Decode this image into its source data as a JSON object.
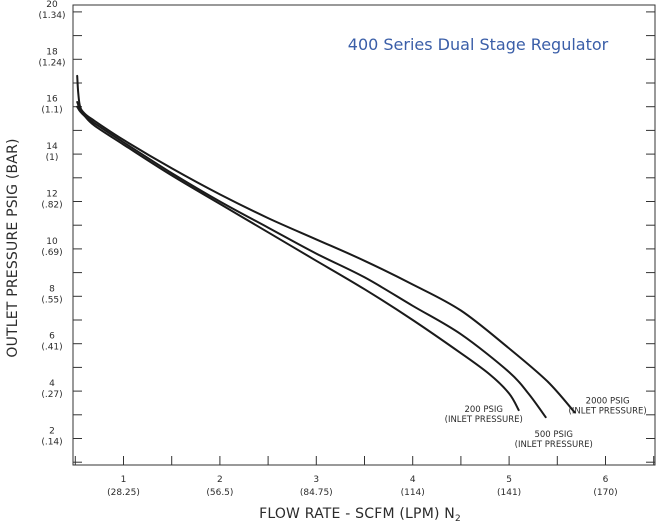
{
  "chart_data": {
    "type": "line",
    "title": "400 Series Dual Stage Regulator",
    "xlabel": "FLOW RATE - SCFM (LPM) N",
    "xlabel_subscript": "2",
    "ylabel": "OUTLET PRESSURE PSIG (BAR)",
    "xlim": [
      0.5,
      6.5
    ],
    "ylim": [
      0.5,
      20.5
    ],
    "x_ticks": [
      {
        "value": 1,
        "label": "1",
        "sublabel": "(28.25)"
      },
      {
        "value": 2,
        "label": "2",
        "sublabel": "(56.5)"
      },
      {
        "value": 3,
        "label": "3",
        "sublabel": "(84.75)"
      },
      {
        "value": 4,
        "label": "4",
        "sublabel": "(114)"
      },
      {
        "value": 5,
        "label": "5",
        "sublabel": "(141)"
      },
      {
        "value": 6,
        "label": "6",
        "sublabel": "(170)"
      }
    ],
    "y_ticks": [
      {
        "value": 2,
        "label": "2",
        "sublabel": "(.14)"
      },
      {
        "value": 4,
        "label": "4",
        "sublabel": "(.27)"
      },
      {
        "value": 6,
        "label": "6",
        "sublabel": "(.41)"
      },
      {
        "value": 8,
        "label": "8",
        "sublabel": "(.55)"
      },
      {
        "value": 10,
        "label": "10",
        "sublabel": "(.69)"
      },
      {
        "value": 12,
        "label": "12",
        "sublabel": "(.82)"
      },
      {
        "value": 14,
        "label": "14",
        "sublabel": "(1)"
      },
      {
        "value": 16,
        "label": "16",
        "sublabel": "(1.1)"
      },
      {
        "value": 18,
        "label": "18",
        "sublabel": "(1.24)"
      },
      {
        "value": 20,
        "label": "20",
        "sublabel": "(1.34)"
      }
    ],
    "grid": false,
    "series": [
      {
        "name": "200 PSIG (INLET PRESSURE)",
        "label_lines": [
          "200 PSIG",
          "(INLET PRESSURE)"
        ],
        "x": [
          0.52,
          0.55,
          0.6,
          0.7,
          1.0,
          1.5,
          2.0,
          2.5,
          3.0,
          3.5,
          4.0,
          4.5,
          4.8,
          5.0,
          5.1
        ],
        "y": [
          16.2,
          15.9,
          15.6,
          15.2,
          14.4,
          13.1,
          11.9,
          10.7,
          9.5,
          8.3,
          7.0,
          5.6,
          4.7,
          3.9,
          3.2
        ]
      },
      {
        "name": "500 PSIG (INLET PRESSURE)",
        "label_lines": [
          "500 PSIG",
          "(INLET PRESSURE)"
        ],
        "x": [
          0.52,
          0.55,
          0.6,
          0.7,
          1.0,
          1.5,
          2.0,
          2.5,
          3.0,
          3.5,
          4.0,
          4.5,
          5.0,
          5.2,
          5.38
        ],
        "y": [
          16.0,
          15.8,
          15.6,
          15.3,
          14.5,
          13.2,
          12.0,
          10.9,
          9.8,
          8.8,
          7.6,
          6.4,
          4.8,
          3.9,
          2.9
        ]
      },
      {
        "name": "2000 PSIG (INLET PRESSURE)",
        "label_lines": [
          "2000 PSIG",
          "(INLET PRESSURE)"
        ],
        "x": [
          0.52,
          0.53,
          0.55,
          0.6,
          0.7,
          1.0,
          1.5,
          2.0,
          2.5,
          3.0,
          3.5,
          4.0,
          4.5,
          5.0,
          5.4,
          5.68
        ],
        "y": [
          17.3,
          16.6,
          16.0,
          15.7,
          15.4,
          14.6,
          13.4,
          12.3,
          11.3,
          10.4,
          9.5,
          8.5,
          7.4,
          5.8,
          4.4,
          3.1
        ]
      }
    ]
  }
}
